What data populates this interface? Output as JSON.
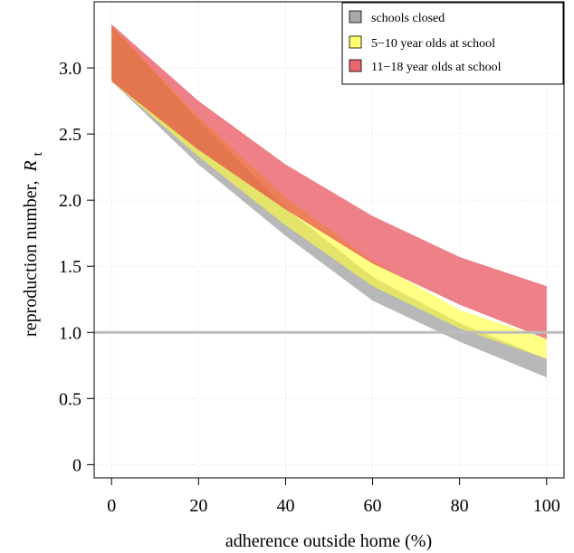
{
  "chart_data": {
    "type": "area",
    "xlabel": "adherence outside home (%)",
    "ylabel_main": "reproduction number,",
    "ylabel_symbol": "R",
    "ylabel_subscript": "t",
    "xlim": [
      -4,
      104
    ],
    "ylim": [
      -0.1,
      3.5
    ],
    "xticks": [
      0,
      20,
      40,
      60,
      80,
      100
    ],
    "yticks": [
      0,
      0.5,
      1.0,
      1.5,
      2.0,
      2.5,
      3.0
    ],
    "ytick_labels": [
      "0",
      "0.5",
      "1.0",
      "1.5",
      "2.0",
      "2.5",
      "3.0"
    ],
    "reference_line": {
      "y": 1.0,
      "color": "#bdbdbd"
    },
    "grid": true,
    "legend_position": "top-right",
    "x": [
      0,
      20,
      40,
      60,
      80,
      100
    ],
    "series": [
      {
        "name": "schools closed",
        "color": "#8c8c8c",
        "lower": [
          2.9,
          2.27,
          1.73,
          1.24,
          0.93,
          0.66
        ],
        "upper": [
          3.32,
          2.6,
          1.94,
          1.42,
          1.07,
          0.8
        ]
      },
      {
        "name": "5−10 year olds at school",
        "color": "#ffff3a",
        "lower": [
          2.9,
          2.33,
          1.81,
          1.35,
          1.03,
          0.8
        ],
        "upper": [
          3.32,
          2.63,
          2.02,
          1.54,
          1.17,
          0.95
        ]
      },
      {
        "name": "11−18 year olds at school",
        "color": "#e3323f",
        "lower": [
          2.9,
          2.38,
          1.93,
          1.52,
          1.21,
          0.95
        ],
        "upper": [
          3.33,
          2.75,
          2.27,
          1.88,
          1.57,
          1.35
        ]
      }
    ]
  }
}
